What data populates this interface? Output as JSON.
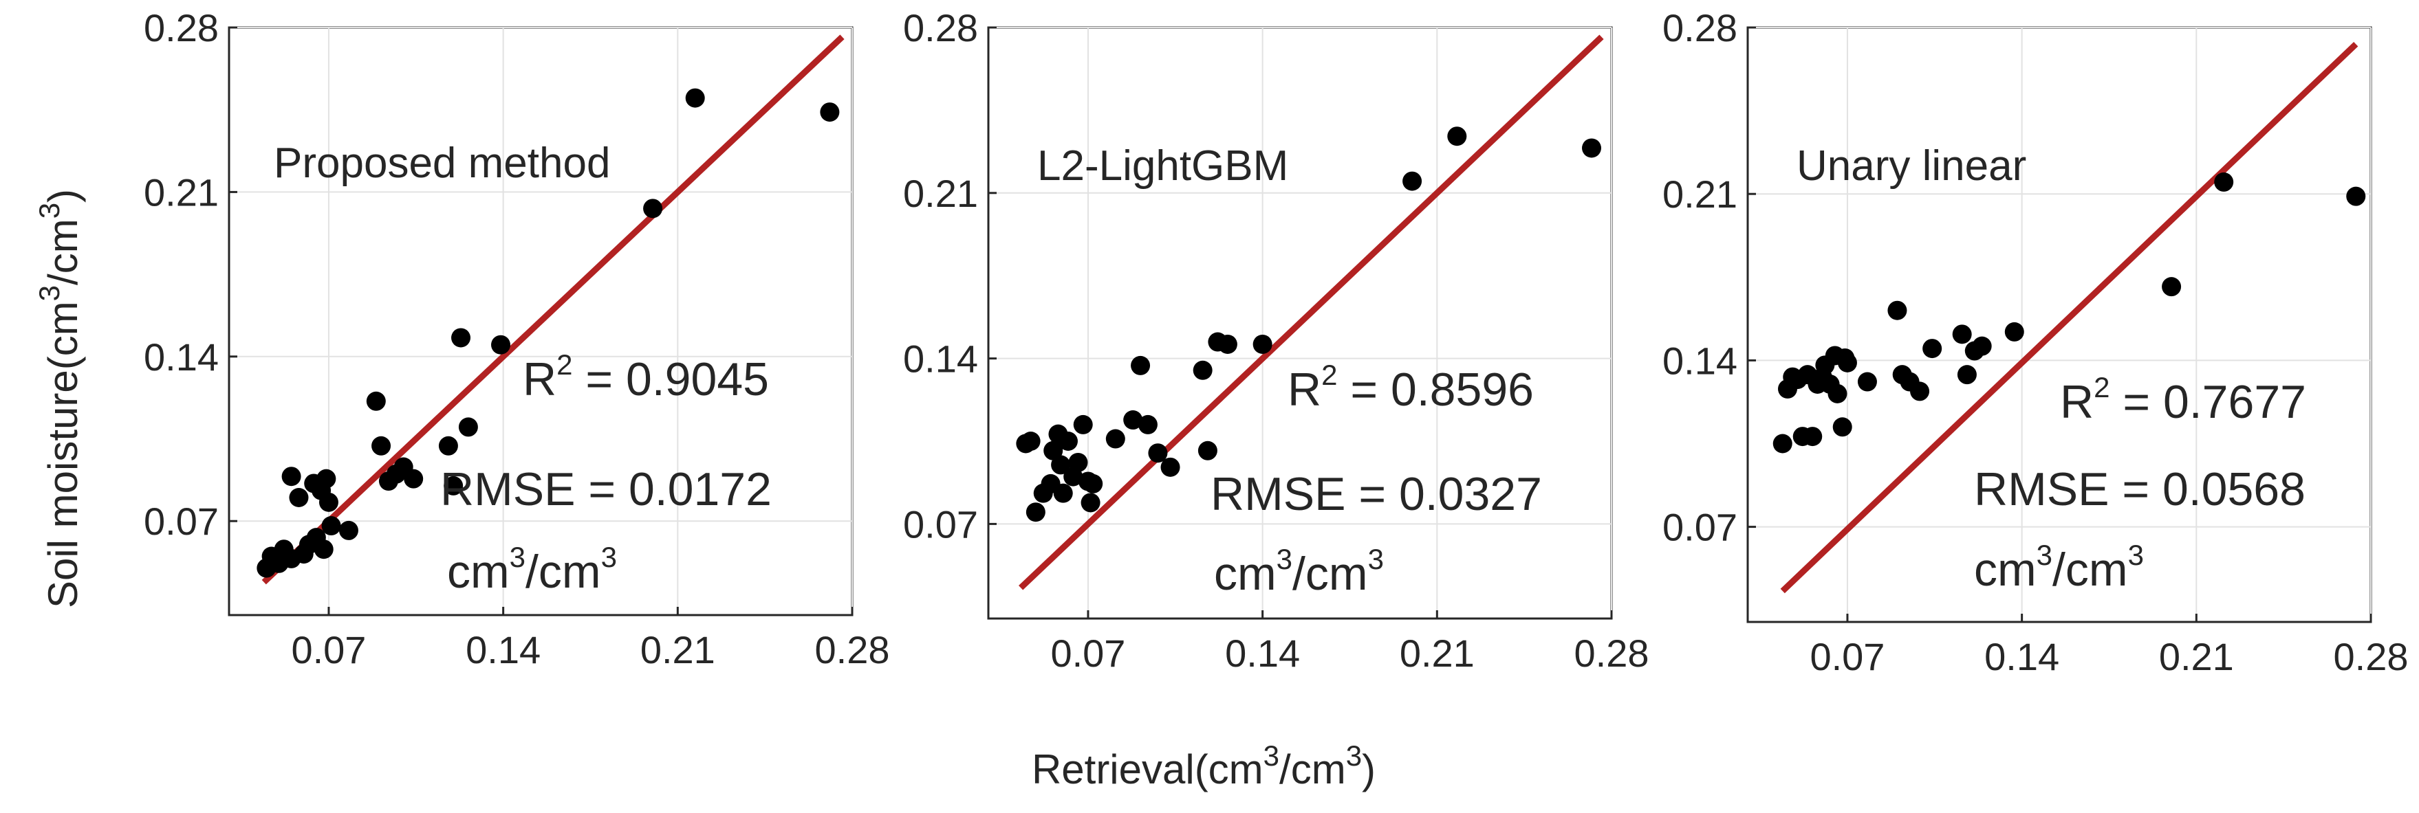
{
  "chart_data": [
    {
      "type": "scatter",
      "method_label": "Proposed method",
      "r2_label": "R",
      "r2_sup": "2",
      "r2_value": " = 0.9045",
      "rmse_text": "RMSE = 0.0172",
      "unit_pre": "cm",
      "unit_sup": "3",
      "unit_post": "/cm",
      "unit_sup2": "3",
      "xlim": [
        0.03,
        0.28
      ],
      "ylim": [
        0.03,
        0.28
      ],
      "fit_line": {
        "x": [
          0.044,
          0.276
        ],
        "y": [
          0.044,
          0.276
        ]
      },
      "x_ticks": [
        "0.07",
        "0.14",
        "0.21",
        "0.28"
      ],
      "y_ticks": [
        "0.07",
        "0.14",
        "0.21",
        "0.28"
      ],
      "points": [
        {
          "x": 0.045,
          "y": 0.05
        },
        {
          "x": 0.047,
          "y": 0.055
        },
        {
          "x": 0.05,
          "y": 0.052
        },
        {
          "x": 0.052,
          "y": 0.058
        },
        {
          "x": 0.055,
          "y": 0.054
        },
        {
          "x": 0.055,
          "y": 0.089
        },
        {
          "x": 0.058,
          "y": 0.08
        },
        {
          "x": 0.06,
          "y": 0.056
        },
        {
          "x": 0.062,
          "y": 0.06
        },
        {
          "x": 0.064,
          "y": 0.086
        },
        {
          "x": 0.065,
          "y": 0.063
        },
        {
          "x": 0.067,
          "y": 0.083
        },
        {
          "x": 0.068,
          "y": 0.058
        },
        {
          "x": 0.069,
          "y": 0.088
        },
        {
          "x": 0.07,
          "y": 0.078
        },
        {
          "x": 0.071,
          "y": 0.068
        },
        {
          "x": 0.078,
          "y": 0.066
        },
        {
          "x": 0.089,
          "y": 0.121
        },
        {
          "x": 0.091,
          "y": 0.102
        },
        {
          "x": 0.094,
          "y": 0.087
        },
        {
          "x": 0.097,
          "y": 0.09
        },
        {
          "x": 0.1,
          "y": 0.093
        },
        {
          "x": 0.104,
          "y": 0.088
        },
        {
          "x": 0.118,
          "y": 0.102
        },
        {
          "x": 0.12,
          "y": 0.085
        },
        {
          "x": 0.123,
          "y": 0.148
        },
        {
          "x": 0.126,
          "y": 0.11
        },
        {
          "x": 0.139,
          "y": 0.145
        },
        {
          "x": 0.2,
          "y": 0.203
        },
        {
          "x": 0.217,
          "y": 0.25
        },
        {
          "x": 0.271,
          "y": 0.244
        }
      ]
    },
    {
      "type": "scatter",
      "method_label": "L2-LightGBM",
      "r2_label": "R",
      "r2_sup": "2",
      "r2_value": " = 0.8596",
      "rmse_text": "RMSE = 0.0327",
      "unit_pre": "cm",
      "unit_sup": "3",
      "unit_post": "/cm",
      "unit_sup2": "3",
      "xlim": [
        0.03,
        0.28
      ],
      "ylim": [
        0.03,
        0.28
      ],
      "fit_line": {
        "x": [
          0.043,
          0.276
        ],
        "y": [
          0.043,
          0.276
        ]
      },
      "x_ticks": [
        "0.07",
        "0.14",
        "0.21",
        "0.28"
      ],
      "y_ticks": [
        "0.07",
        "0.14",
        "0.21",
        "0.28"
      ],
      "points": [
        {
          "x": 0.045,
          "y": 0.104
        },
        {
          "x": 0.047,
          "y": 0.105
        },
        {
          "x": 0.049,
          "y": 0.075
        },
        {
          "x": 0.052,
          "y": 0.083
        },
        {
          "x": 0.055,
          "y": 0.087
        },
        {
          "x": 0.056,
          "y": 0.101
        },
        {
          "x": 0.058,
          "y": 0.108
        },
        {
          "x": 0.059,
          "y": 0.095
        },
        {
          "x": 0.06,
          "y": 0.083
        },
        {
          "x": 0.062,
          "y": 0.105
        },
        {
          "x": 0.064,
          "y": 0.09
        },
        {
          "x": 0.066,
          "y": 0.096
        },
        {
          "x": 0.068,
          "y": 0.112
        },
        {
          "x": 0.07,
          "y": 0.088
        },
        {
          "x": 0.071,
          "y": 0.079
        },
        {
          "x": 0.072,
          "y": 0.087
        },
        {
          "x": 0.081,
          "y": 0.106
        },
        {
          "x": 0.088,
          "y": 0.114
        },
        {
          "x": 0.091,
          "y": 0.137
        },
        {
          "x": 0.094,
          "y": 0.112
        },
        {
          "x": 0.098,
          "y": 0.1
        },
        {
          "x": 0.103,
          "y": 0.094
        },
        {
          "x": 0.116,
          "y": 0.135
        },
        {
          "x": 0.118,
          "y": 0.101
        },
        {
          "x": 0.122,
          "y": 0.147
        },
        {
          "x": 0.126,
          "y": 0.146
        },
        {
          "x": 0.14,
          "y": 0.146
        },
        {
          "x": 0.2,
          "y": 0.215
        },
        {
          "x": 0.218,
          "y": 0.234
        },
        {
          "x": 0.272,
          "y": 0.229
        }
      ]
    },
    {
      "type": "scatter",
      "method_label": "Unary linear",
      "r2_label": "R",
      "r2_sup": "2",
      "r2_value": " = 0.7677",
      "rmse_text": "RMSE = 0.0568",
      "unit_pre": "cm",
      "unit_sup": "3",
      "unit_post": "/cm",
      "unit_sup2": "3",
      "xlim": [
        0.03,
        0.28
      ],
      "ylim": [
        0.03,
        0.28
      ],
      "fit_line": {
        "x": [
          0.044,
          0.274
        ],
        "y": [
          0.043,
          0.273
        ]
      },
      "x_ticks": [
        "0.07",
        "0.14",
        "0.21",
        "0.28"
      ],
      "y_ticks": [
        "0.07",
        "0.14",
        "0.21",
        "0.28"
      ],
      "points": [
        {
          "x": 0.044,
          "y": 0.105
        },
        {
          "x": 0.046,
          "y": 0.128
        },
        {
          "x": 0.048,
          "y": 0.133
        },
        {
          "x": 0.05,
          "y": 0.132
        },
        {
          "x": 0.052,
          "y": 0.108
        },
        {
          "x": 0.054,
          "y": 0.134
        },
        {
          "x": 0.056,
          "y": 0.108
        },
        {
          "x": 0.058,
          "y": 0.13
        },
        {
          "x": 0.06,
          "y": 0.133
        },
        {
          "x": 0.061,
          "y": 0.138
        },
        {
          "x": 0.063,
          "y": 0.13
        },
        {
          "x": 0.065,
          "y": 0.142
        },
        {
          "x": 0.066,
          "y": 0.126
        },
        {
          "x": 0.068,
          "y": 0.112
        },
        {
          "x": 0.069,
          "y": 0.141
        },
        {
          "x": 0.07,
          "y": 0.139
        },
        {
          "x": 0.078,
          "y": 0.131
        },
        {
          "x": 0.09,
          "y": 0.161
        },
        {
          "x": 0.092,
          "y": 0.134
        },
        {
          "x": 0.095,
          "y": 0.131
        },
        {
          "x": 0.099,
          "y": 0.127
        },
        {
          "x": 0.104,
          "y": 0.145
        },
        {
          "x": 0.116,
          "y": 0.151
        },
        {
          "x": 0.118,
          "y": 0.134
        },
        {
          "x": 0.121,
          "y": 0.144
        },
        {
          "x": 0.124,
          "y": 0.146
        },
        {
          "x": 0.137,
          "y": 0.152
        },
        {
          "x": 0.2,
          "y": 0.171
        },
        {
          "x": 0.221,
          "y": 0.215
        },
        {
          "x": 0.274,
          "y": 0.209
        }
      ]
    }
  ],
  "shared": {
    "ylabel_text": "Soil moisture(cm",
    "ylabel_sup": "3",
    "ylabel_mid": "/cm",
    "ylabel_sup2": "3",
    "ylabel_close": ")",
    "xlabel_text": "Retrieval(cm",
    "xlabel_sup": "3",
    "xlabel_mid": "/cm",
    "xlabel_sup2": "3",
    "xlabel_close": ")"
  },
  "colors": {
    "fit_line": "#B22222",
    "points": "#000000",
    "grid": "#e2e2e2",
    "axes": "#262626"
  }
}
